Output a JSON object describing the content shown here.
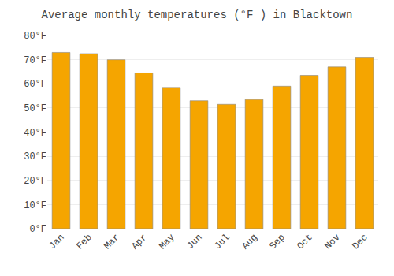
{
  "chart_data": {
    "type": "bar",
    "title": "Average monthly temperatures (°F ) in Blacktown",
    "categories": [
      "Jan",
      "Feb",
      "Mar",
      "Apr",
      "May",
      "Jun",
      "Jul",
      "Aug",
      "Sep",
      "Oct",
      "Nov",
      "Dec"
    ],
    "values": [
      73,
      72.5,
      70,
      64.5,
      58.5,
      53,
      51.5,
      53.5,
      59,
      63.5,
      67,
      71
    ],
    "color": "#F5A500",
    "ylim": [
      0,
      80
    ],
    "yticks": [
      {
        "value": 0,
        "label": "0°F"
      },
      {
        "value": 10,
        "label": "10°F"
      },
      {
        "value": 20,
        "label": "20°F"
      },
      {
        "value": 30,
        "label": "30°F"
      },
      {
        "value": 40,
        "label": "40°F"
      },
      {
        "value": 50,
        "label": "50°F"
      },
      {
        "value": 60,
        "label": "60°F"
      },
      {
        "value": 70,
        "label": "70°F"
      },
      {
        "value": 80,
        "label": "80°F"
      }
    ],
    "grid": true
  }
}
